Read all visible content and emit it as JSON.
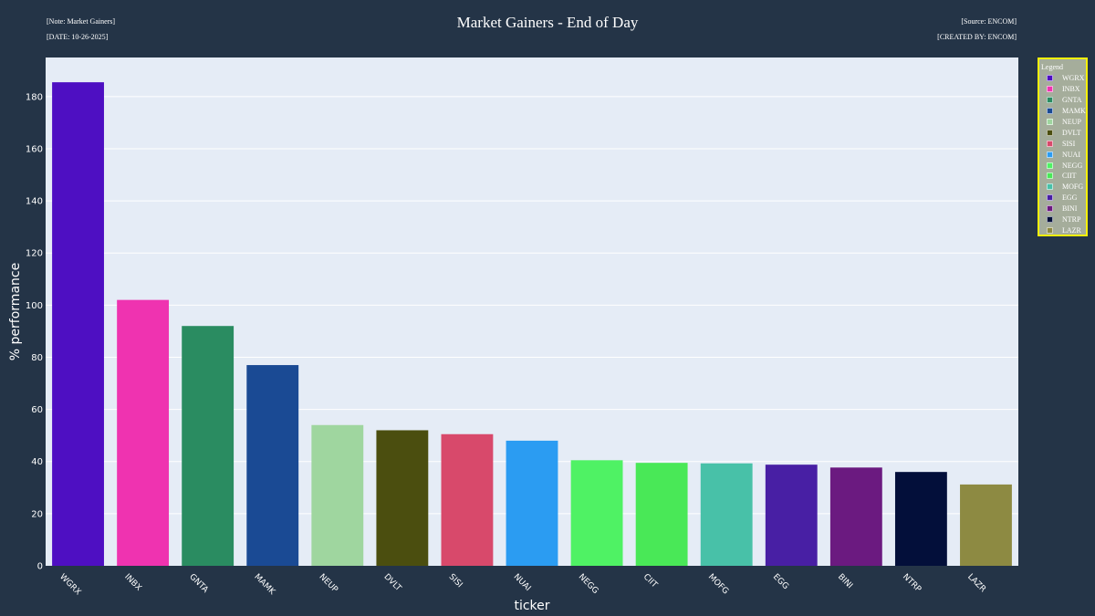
{
  "header": {
    "note": "[Note: Market Gainers]",
    "date": "[DATE: 10-26-2025]",
    "source": "[Source: ENCOM]",
    "created_by": "[CREATED BY: ENCOM]"
  },
  "colors": {
    "page_background": "#243447",
    "plot_background": "#e5ecf6",
    "legend_background": "#a5ad9b",
    "legend_border": "#f5f00a"
  },
  "chart_data": {
    "type": "bar",
    "title": "Market Gainers - End of Day",
    "xlabel": "ticker",
    "ylabel": "% performance",
    "ylim": [
      0,
      195
    ],
    "yticks": [
      0,
      20,
      40,
      60,
      80,
      100,
      120,
      140,
      160,
      180
    ],
    "grid": true,
    "legend_title": "Legend",
    "legend_position": "right",
    "categories": [
      "WGRX",
      "INBX",
      "GNTA",
      "MAMK",
      "NEUP",
      "DVLT",
      "SISI",
      "NUAI",
      "NEGG",
      "CIIT",
      "MOFG",
      "EGG",
      "BINI",
      "NTRP",
      "LAZR"
    ],
    "values": [
      185.5,
      102,
      92,
      77,
      54,
      52,
      50.5,
      48,
      40.5,
      39.5,
      39.3,
      38.8,
      37.7,
      36,
      31.2
    ],
    "colors": [
      "#4e0fc2",
      "#ef33b0",
      "#2a8c61",
      "#1a4a94",
      "#9fd69f",
      "#4b4e0f",
      "#d8496b",
      "#2b9cf2",
      "#4ff264",
      "#49e857",
      "#48c1a8",
      "#481fa4",
      "#6b1a80",
      "#030f3a",
      "#8d8a42"
    ]
  }
}
